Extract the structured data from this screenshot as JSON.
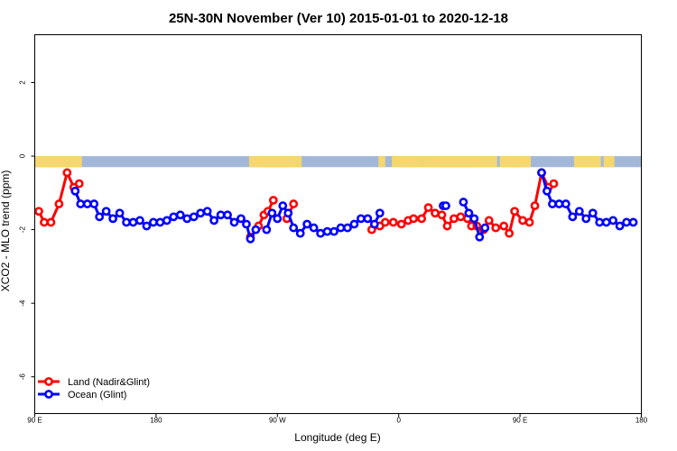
{
  "chart_data": {
    "type": "line",
    "title": "25N-30N November (Ver 10)   2015-01-01 to 2020-12-18",
    "xlabel": "Longitude (deg E)",
    "ylabel": "XCO2 - MLO trend (ppm)",
    "xlim": [
      90,
      540
    ],
    "ylim": [
      -7,
      3.3
    ],
    "x_ticks": [
      {
        "value": 90,
        "label": "90 E"
      },
      {
        "value": 180,
        "label": "180"
      },
      {
        "value": 270,
        "label": "90 W"
      },
      {
        "value": 360,
        "label": "0"
      },
      {
        "value": 450,
        "label": "90 E"
      },
      {
        "value": 540,
        "label": "180"
      }
    ],
    "y_ticks": [
      {
        "value": 2,
        "label": "2"
      },
      {
        "value": 0,
        "label": "0"
      },
      {
        "value": -2,
        "label": "-2"
      },
      {
        "value": -4,
        "label": "-4"
      },
      {
        "value": -6,
        "label": "-6"
      }
    ],
    "land_mask": {
      "y_range": [
        -0.3,
        0.0
      ],
      "ocean_color": "#a3b8d8",
      "land_color": "#f5d76e",
      "land_ranges": [
        [
          90,
          125
        ],
        [
          249,
          283
        ],
        [
          278,
          288
        ],
        [
          345,
          350
        ],
        [
          355,
          378
        ],
        [
          377,
          425
        ],
        [
          424,
          433
        ],
        [
          435,
          458
        ],
        [
          490,
          510
        ],
        [
          495,
          502
        ],
        [
          512,
          520
        ]
      ]
    },
    "grid": false,
    "legend_position": "bottom-left",
    "series": [
      {
        "name": "Land (Nadir&Glint)",
        "color": "#ff0000",
        "segments": [
          [
            [
              93,
              -1.5
            ],
            [
              97,
              -1.8
            ],
            [
              102,
              -1.8
            ],
            [
              108,
              -1.3
            ],
            [
              114,
              -0.45
            ],
            [
              119,
              -0.85
            ],
            [
              123,
              -0.75
            ]
          ],
          [
            [
              250,
              -2.2
            ],
            [
              256,
              -1.9
            ],
            [
              260,
              -1.6
            ],
            [
              263,
              -1.5
            ],
            [
              267,
              -1.2
            ]
          ],
          [
            [
              277,
              -1.7
            ],
            [
              282,
              -1.3
            ]
          ],
          [
            [
              340,
              -2.0
            ],
            [
              346,
              -1.9
            ],
            [
              350,
              -1.8
            ],
            [
              356,
              -1.8
            ],
            [
              362,
              -1.85
            ],
            [
              367,
              -1.75
            ],
            [
              371,
              -1.7
            ],
            [
              377,
              -1.7
            ],
            [
              382,
              -1.4
            ],
            [
              387,
              -1.55
            ],
            [
              392,
              -1.6
            ],
            [
              396,
              -1.9
            ],
            [
              401,
              -1.7
            ],
            [
              406,
              -1.65
            ],
            [
              411,
              -1.7
            ],
            [
              414,
              -1.9
            ],
            [
              418,
              -1.9
            ],
            [
              423,
              -2.0
            ],
            [
              427,
              -1.75
            ],
            [
              432,
              -1.95
            ],
            [
              438,
              -1.9
            ],
            [
              442,
              -2.1
            ],
            [
              446,
              -1.5
            ],
            [
              452,
              -1.75
            ],
            [
              457,
              -1.8
            ],
            [
              461,
              -1.35
            ],
            [
              466,
              -0.45
            ],
            [
              471,
              -0.85
            ],
            [
              475,
              -0.75
            ]
          ]
        ]
      },
      {
        "name": "Ocean (Glint)",
        "color": "#0000ff",
        "segments": [
          [
            [
              120,
              -0.95
            ],
            [
              124,
              -1.3
            ],
            [
              129,
              -1.3
            ],
            [
              134,
              -1.3
            ],
            [
              138,
              -1.65
            ],
            [
              143,
              -1.5
            ],
            [
              148,
              -1.7
            ],
            [
              153,
              -1.55
            ],
            [
              158,
              -1.8
            ],
            [
              163,
              -1.8
            ],
            [
              168,
              -1.75
            ],
            [
              173,
              -1.9
            ],
            [
              178,
              -1.8
            ],
            [
              183,
              -1.8
            ],
            [
              188,
              -1.75
            ],
            [
              193,
              -1.65
            ],
            [
              198,
              -1.6
            ],
            [
              203,
              -1.7
            ],
            [
              208,
              -1.65
            ],
            [
              213,
              -1.55
            ],
            [
              218,
              -1.5
            ],
            [
              223,
              -1.75
            ],
            [
              228,
              -1.6
            ],
            [
              233,
              -1.6
            ],
            [
              238,
              -1.8
            ],
            [
              243,
              -1.7
            ],
            [
              247,
              -1.85
            ],
            [
              250,
              -2.25
            ],
            [
              254,
              -2.0
            ]
          ],
          [
            [
              262,
              -2.0
            ],
            [
              266,
              -1.55
            ],
            [
              270,
              -1.7
            ],
            [
              274,
              -1.35
            ],
            [
              278,
              -1.55
            ],
            [
              282,
              -1.95
            ],
            [
              287,
              -2.1
            ],
            [
              292,
              -1.85
            ],
            [
              297,
              -1.95
            ],
            [
              302,
              -2.1
            ],
            [
              307,
              -2.05
            ],
            [
              312,
              -2.05
            ],
            [
              317,
              -1.95
            ],
            [
              322,
              -1.95
            ],
            [
              327,
              -1.85
            ],
            [
              332,
              -1.7
            ],
            [
              337,
              -1.7
            ],
            [
              342,
              -1.85
            ],
            [
              346,
              -1.55
            ]
          ],
          [
            [
              393,
              -1.35
            ],
            [
              395,
              -1.35
            ]
          ],
          [
            [
              408,
              -1.25
            ],
            [
              412,
              -1.55
            ],
            [
              416,
              -1.7
            ],
            [
              420,
              -2.2
            ],
            [
              424,
              -1.95
            ]
          ],
          [
            [
              466,
              -0.45
            ],
            [
              470,
              -0.95
            ],
            [
              474,
              -1.3
            ],
            [
              479,
              -1.3
            ],
            [
              484,
              -1.3
            ],
            [
              489,
              -1.65
            ],
            [
              494,
              -1.5
            ],
            [
              499,
              -1.7
            ],
            [
              504,
              -1.55
            ],
            [
              509,
              -1.8
            ],
            [
              514,
              -1.8
            ],
            [
              519,
              -1.75
            ],
            [
              524,
              -1.9
            ],
            [
              529,
              -1.8
            ],
            [
              534,
              -1.8
            ]
          ]
        ]
      }
    ]
  }
}
